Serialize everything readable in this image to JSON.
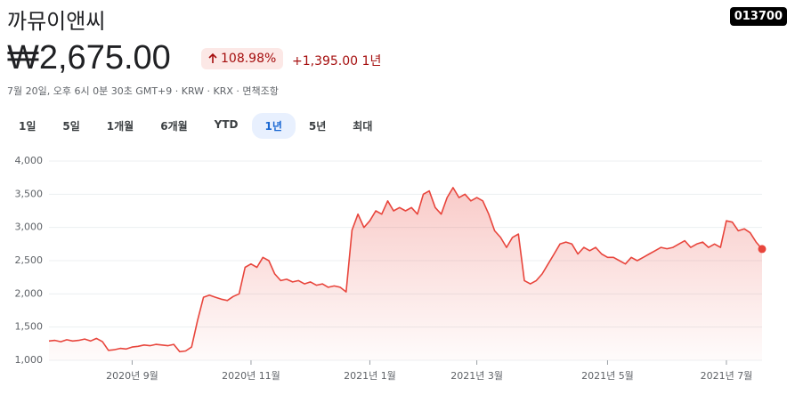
{
  "header": {
    "title": "까뮤이앤씨",
    "ticker": "013700",
    "price": "₩2,675.00",
    "change_pct": "108.98%",
    "change": "+1,395.00",
    "period": "1년",
    "subline": "7월 20일, 오후 6시 0분 30초 GMT+9 · KRW · KRX · 면책조항"
  },
  "ranges": {
    "items": [
      "1일",
      "5일",
      "1개월",
      "6개월",
      "YTD",
      "1년",
      "5년",
      "최대"
    ],
    "selected": 5
  },
  "chart_data": {
    "type": "line",
    "color": "#e8453c",
    "values": [
      1290,
      1300,
      1280,
      1310,
      1290,
      1300,
      1320,
      1290,
      1330,
      1280,
      1150,
      1160,
      1180,
      1170,
      1200,
      1210,
      1230,
      1220,
      1240,
      1230,
      1220,
      1240,
      1130,
      1140,
      1200,
      1600,
      1950,
      1980,
      1950,
      1920,
      1900,
      1960,
      2000,
      2400,
      2450,
      2400,
      2550,
      2500,
      2300,
      2200,
      2220,
      2180,
      2200,
      2150,
      2180,
      2130,
      2150,
      2100,
      2120,
      2100,
      2030,
      2960,
      3200,
      3000,
      3100,
      3250,
      3200,
      3400,
      3250,
      3300,
      3250,
      3300,
      3200,
      3500,
      3550,
      3300,
      3200,
      3450,
      3600,
      3450,
      3500,
      3400,
      3450,
      3400,
      3200,
      2950,
      2850,
      2700,
      2850,
      2900,
      2200,
      2150,
      2200,
      2300,
      2450,
      2600,
      2750,
      2780,
      2750,
      2600,
      2700,
      2650,
      2700,
      2600,
      2550,
      2550,
      2500,
      2450,
      2550,
      2500,
      2550,
      2600,
      2650,
      2700,
      2680,
      2700,
      2750,
      2800,
      2700,
      2750,
      2780,
      2700,
      2750,
      2700,
      3100,
      3080,
      2950,
      2980,
      2920,
      2780,
      2675
    ],
    "xlim": [
      0,
      120
    ],
    "xticks": [
      {
        "value": 14,
        "label": "2020년 9월"
      },
      {
        "value": 34,
        "label": "2020년 11월"
      },
      {
        "value": 54,
        "label": "2021년 1월"
      },
      {
        "value": 72,
        "label": "2021년 3월"
      },
      {
        "value": 94,
        "label": "2021년 5월"
      },
      {
        "value": 114,
        "label": "2021년 7월"
      }
    ],
    "ylim": [
      1000,
      4000
    ],
    "yticks": [
      {
        "value": 1000,
        "label": "1,000"
      },
      {
        "value": 1500,
        "label": "1,500"
      },
      {
        "value": 2000,
        "label": "2,000"
      },
      {
        "value": 2500,
        "label": "2,500"
      },
      {
        "value": 3000,
        "label": "3,000"
      },
      {
        "value": 3500,
        "label": "3,500"
      },
      {
        "value": 4000,
        "label": "4,000"
      }
    ],
    "grid": true
  }
}
